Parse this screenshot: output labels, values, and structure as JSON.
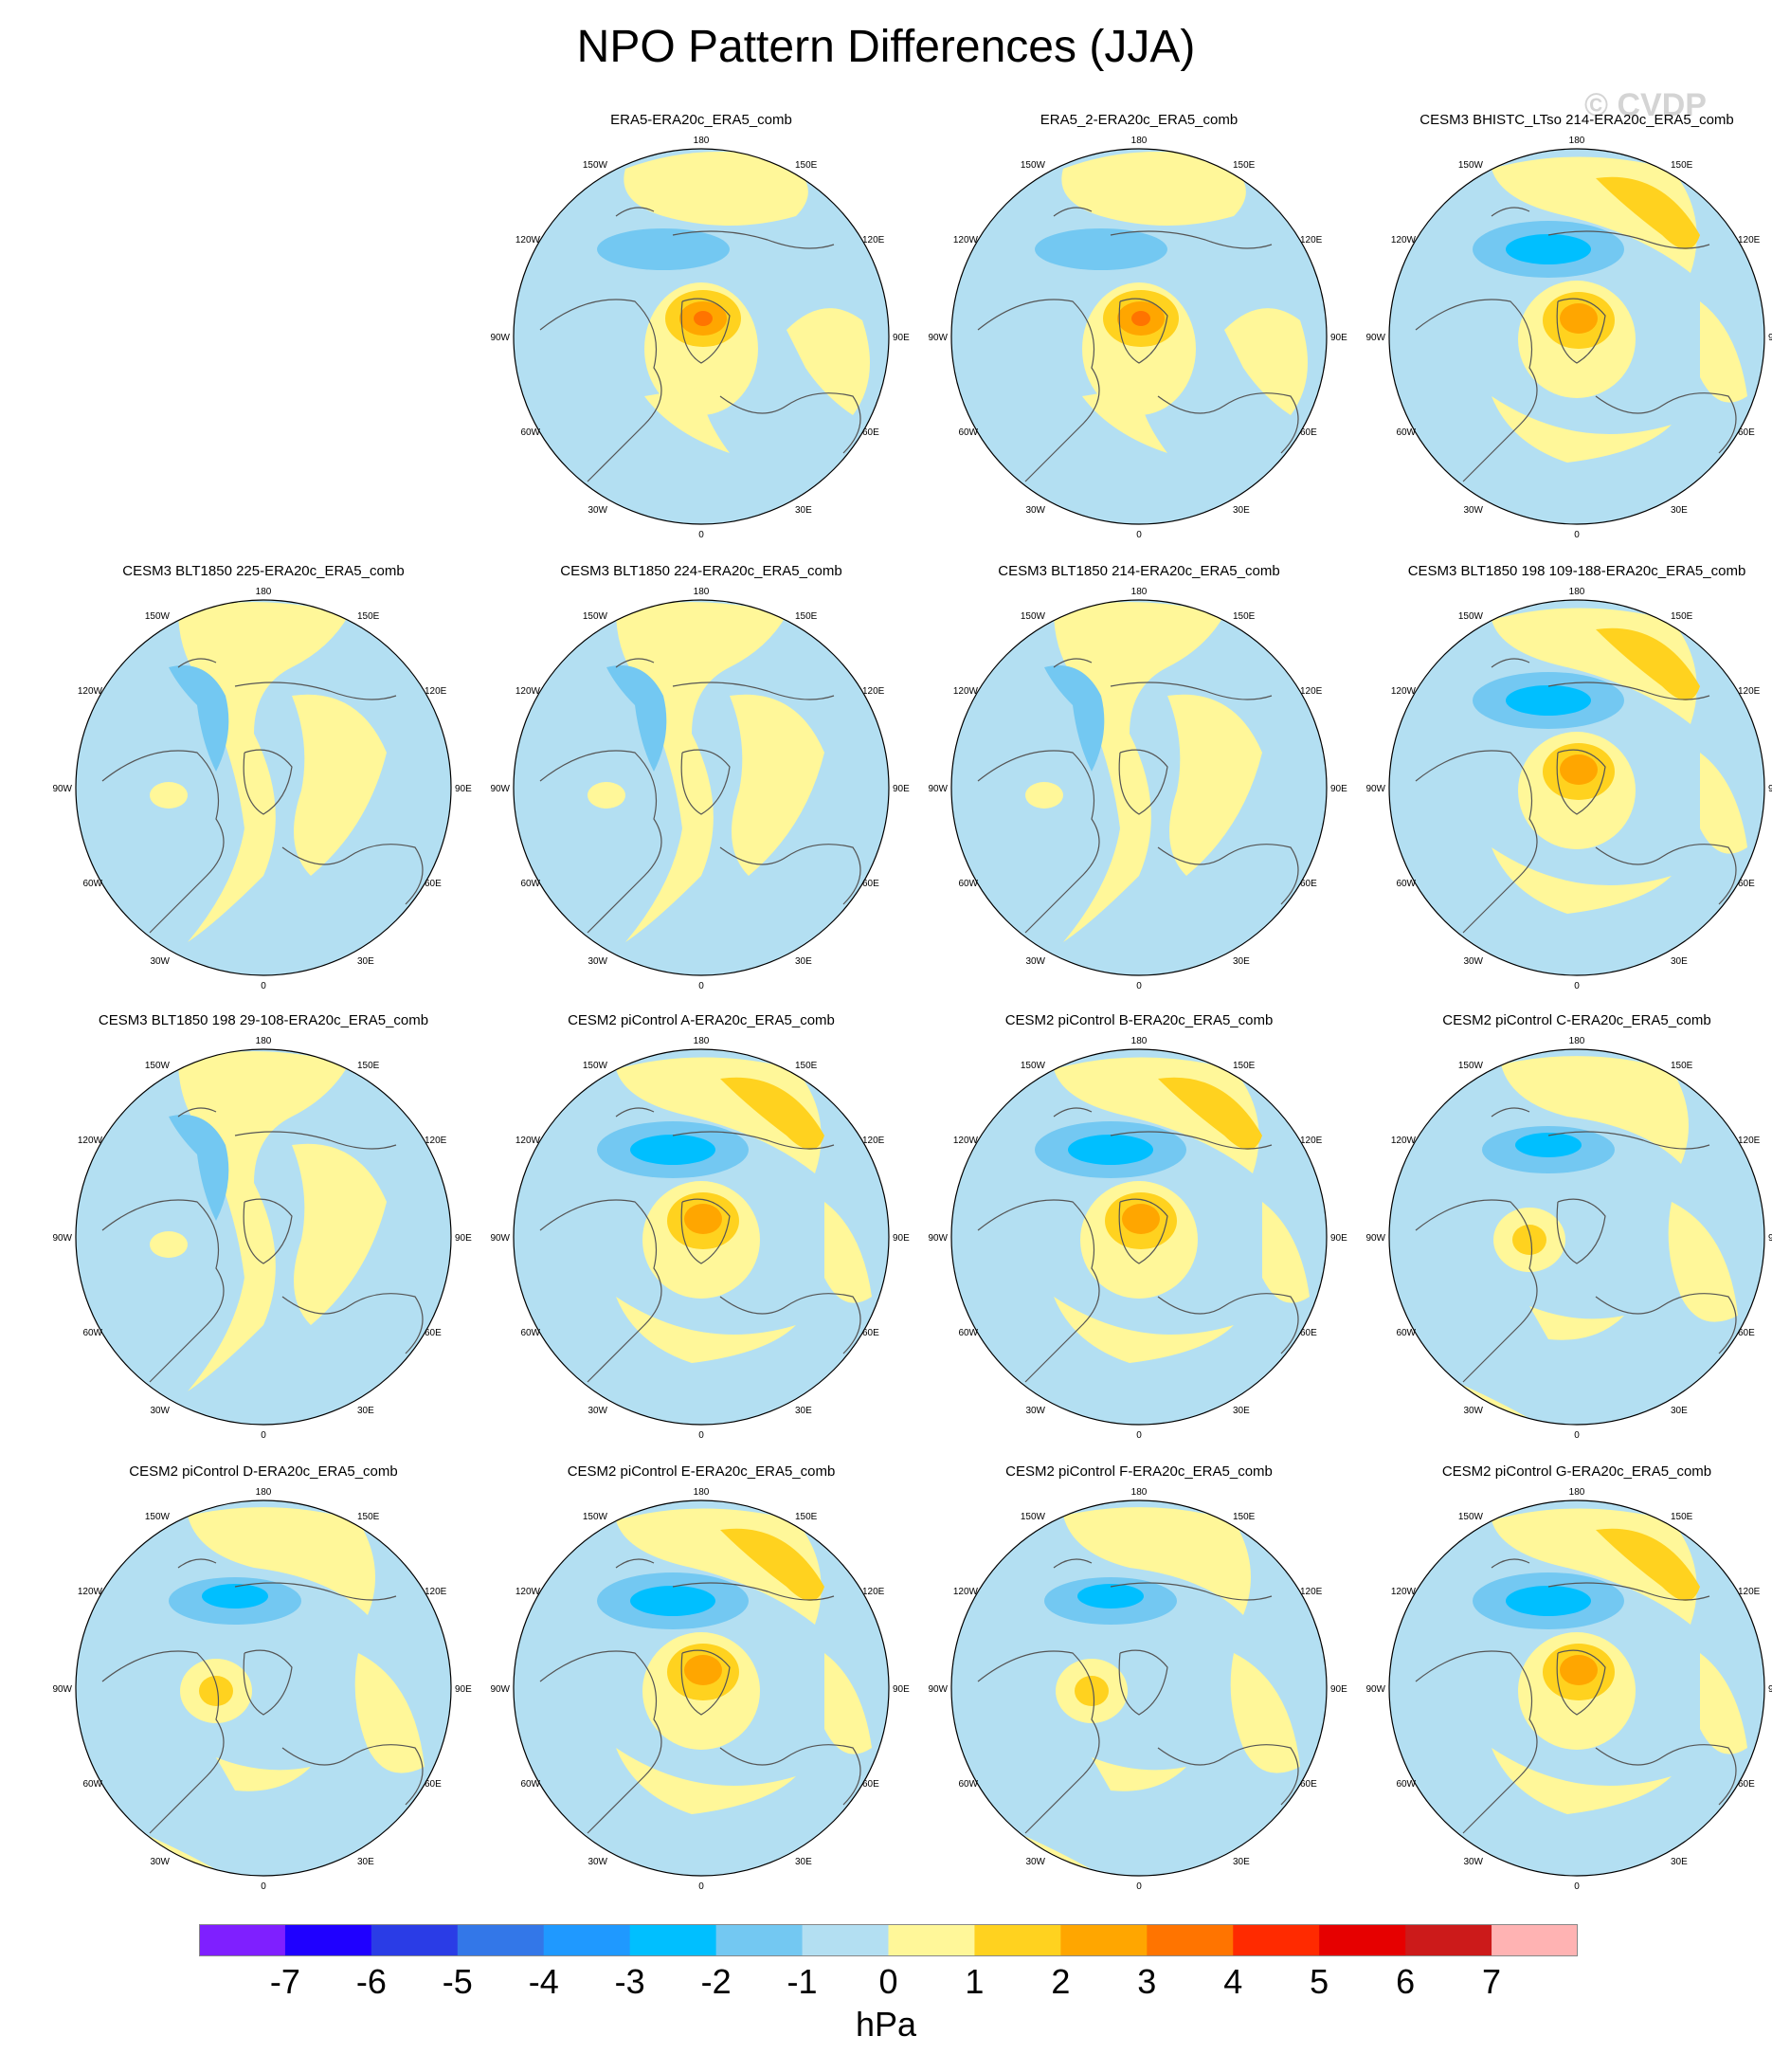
{
  "title": "NPO Pattern Differences (JJA)",
  "watermark": "© CVDP",
  "units": "hPa",
  "map_labels": {
    "top": "180",
    "bottom": "0",
    "left": "90W",
    "right": "90E",
    "upper_left": [
      "150W",
      "120W"
    ],
    "upper_right": [
      "150E",
      "120E"
    ],
    "lower_left": [
      "60W",
      "30W"
    ],
    "lower_right": [
      "60E",
      "30E"
    ]
  },
  "colorbar": {
    "colors": [
      "#7f1fff",
      "#1f00ff",
      "#2a3ce6",
      "#3377e8",
      "#1f99ff",
      "#00bfff",
      "#73c8f2",
      "#b3dff2",
      "#fff799",
      "#ffd21f",
      "#ffa600",
      "#ff7400",
      "#ff2a00",
      "#e60000",
      "#cc1a1a",
      "#ffb3b3"
    ],
    "ticks": [
      "-7",
      "-6",
      "-5",
      "-4",
      "-3",
      "-2",
      "-1",
      "0",
      "1",
      "2",
      "3",
      "4",
      "5",
      "6",
      "7"
    ]
  },
  "panels": [
    {
      "title": "ERA5-ERA20c_ERA5_comb",
      "pattern": "a"
    },
    {
      "title": "ERA5_2-ERA20c_ERA5_comb",
      "pattern": "a"
    },
    {
      "title": "CESM3 BHISTC_LTso 214-ERA20c_ERA5_comb",
      "pattern": "b"
    },
    {
      "title": "CESM3 BLT1850 225-ERA20c_ERA5_comb",
      "pattern": "c"
    },
    {
      "title": "CESM3 BLT1850 224-ERA20c_ERA5_comb",
      "pattern": "c"
    },
    {
      "title": "CESM3 BLT1850 214-ERA20c_ERA5_comb",
      "pattern": "c"
    },
    {
      "title": "CESM3 BLT1850 198 109-188-ERA20c_ERA5_comb",
      "pattern": "b"
    },
    {
      "title": "CESM3 BLT1850 198 29-108-ERA20c_ERA5_comb",
      "pattern": "c"
    },
    {
      "title": "CESM2 piControl A-ERA20c_ERA5_comb",
      "pattern": "b"
    },
    {
      "title": "CESM2 piControl B-ERA20c_ERA5_comb",
      "pattern": "b"
    },
    {
      "title": "CESM2 piControl C-ERA20c_ERA5_comb",
      "pattern": "d"
    },
    {
      "title": "CESM2 piControl D-ERA20c_ERA5_comb",
      "pattern": "d"
    },
    {
      "title": "CESM2 piControl E-ERA20c_ERA5_comb",
      "pattern": "b"
    },
    {
      "title": "CESM2 piControl F-ERA20c_ERA5_comb",
      "pattern": "d"
    },
    {
      "title": "CESM2 piControl G-ERA20c_ERA5_comb",
      "pattern": "b"
    }
  ]
}
